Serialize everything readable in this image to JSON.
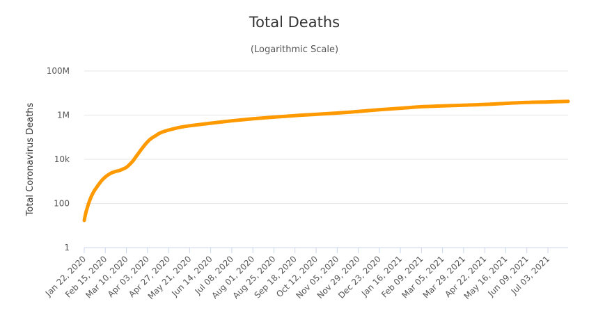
{
  "chart_data": {
    "type": "line",
    "title": "Total Deaths",
    "subtitle": "(Logarithmic Scale)",
    "xlabel": "",
    "ylabel": "Total Coronavirus Deaths",
    "yscale": "log",
    "ylim": [
      1,
      100000000
    ],
    "grid": true,
    "y_ticks": [
      {
        "value": 1,
        "label": "1"
      },
      {
        "value": 100,
        "label": "100"
      },
      {
        "value": 10000,
        "label": "10k"
      },
      {
        "value": 1000000,
        "label": "1M"
      },
      {
        "value": 100000000,
        "label": "100M"
      }
    ],
    "x_ticks": [
      "Jan 22, 2020",
      "Feb 15, 2020",
      "Mar 10, 2020",
      "Apr 03, 2020",
      "Apr 27, 2020",
      "May 21, 2020",
      "Jun 14, 2020",
      "Jul 08, 2020",
      "Aug 01, 2020",
      "Aug 25, 2020",
      "Sep 18, 2020",
      "Oct 12, 2020",
      "Nov 05, 2020",
      "Nov 29, 2020",
      "Dec 23, 2020",
      "Jan 16, 2021",
      "Feb 09, 2021",
      "Mar 05, 2021",
      "Mar 29, 2021",
      "Apr 22, 2021",
      "May 16, 2021",
      "Jun 09, 2021",
      "Jul 03, 2021"
    ],
    "x_last_date": "Jul 26, 2021",
    "series": [
      {
        "color": "#FF9900",
        "points": [
          {
            "date": "Jan 22, 2020",
            "value": 17
          },
          {
            "date": "Jan 24, 2020",
            "value": 40
          },
          {
            "date": "Jan 28, 2020",
            "value": 130
          },
          {
            "date": "Feb 01, 2020",
            "value": 300
          },
          {
            "date": "Feb 06, 2020",
            "value": 600
          },
          {
            "date": "Feb 11, 2020",
            "value": 1100
          },
          {
            "date": "Feb 16, 2020",
            "value": 1700
          },
          {
            "date": "Feb 21, 2020",
            "value": 2300
          },
          {
            "date": "Feb 26, 2020",
            "value": 2750
          },
          {
            "date": "Mar 02, 2020",
            "value": 3100
          },
          {
            "date": "Mar 06, 2020",
            "value": 3600
          },
          {
            "date": "Mar 10, 2020",
            "value": 4300
          },
          {
            "date": "Mar 14, 2020",
            "value": 6000
          },
          {
            "date": "Mar 18, 2020",
            "value": 9000
          },
          {
            "date": "Mar 22, 2020",
            "value": 15000
          },
          {
            "date": "Mar 27, 2020",
            "value": 28000
          },
          {
            "date": "Apr 01, 2020",
            "value": 50000
          },
          {
            "date": "Apr 06, 2020",
            "value": 80000
          },
          {
            "date": "Apr 12, 2020",
            "value": 115000
          },
          {
            "date": "Apr 18, 2020",
            "value": 160000
          },
          {
            "date": "Apr 27, 2020",
            "value": 210000
          },
          {
            "date": "May 09, 2020",
            "value": 275000
          },
          {
            "date": "May 21, 2020",
            "value": 330000
          },
          {
            "date": "Jun 14, 2020",
            "value": 430000
          },
          {
            "date": "Jul 08, 2020",
            "value": 550000
          },
          {
            "date": "Aug 01, 2020",
            "value": 680000
          },
          {
            "date": "Aug 25, 2020",
            "value": 810000
          },
          {
            "date": "Sep 18, 2020",
            "value": 950000
          },
          {
            "date": "Oct 12, 2020",
            "value": 1080000
          },
          {
            "date": "Nov 05, 2020",
            "value": 1240000
          },
          {
            "date": "Nov 29, 2020",
            "value": 1460000
          },
          {
            "date": "Dec 23, 2020",
            "value": 1750000
          },
          {
            "date": "Jan 16, 2021",
            "value": 2050000
          },
          {
            "date": "Feb 09, 2021",
            "value": 2400000
          },
          {
            "date": "Mar 05, 2021",
            "value": 2600000
          },
          {
            "date": "Mar 29, 2021",
            "value": 2800000
          },
          {
            "date": "Apr 22, 2021",
            "value": 3050000
          },
          {
            "date": "May 16, 2021",
            "value": 3400000
          },
          {
            "date": "Jun 09, 2021",
            "value": 3750000
          },
          {
            "date": "Jul 03, 2021",
            "value": 3950000
          },
          {
            "date": "Jul 26, 2021",
            "value": 4180000
          }
        ]
      }
    ]
  }
}
